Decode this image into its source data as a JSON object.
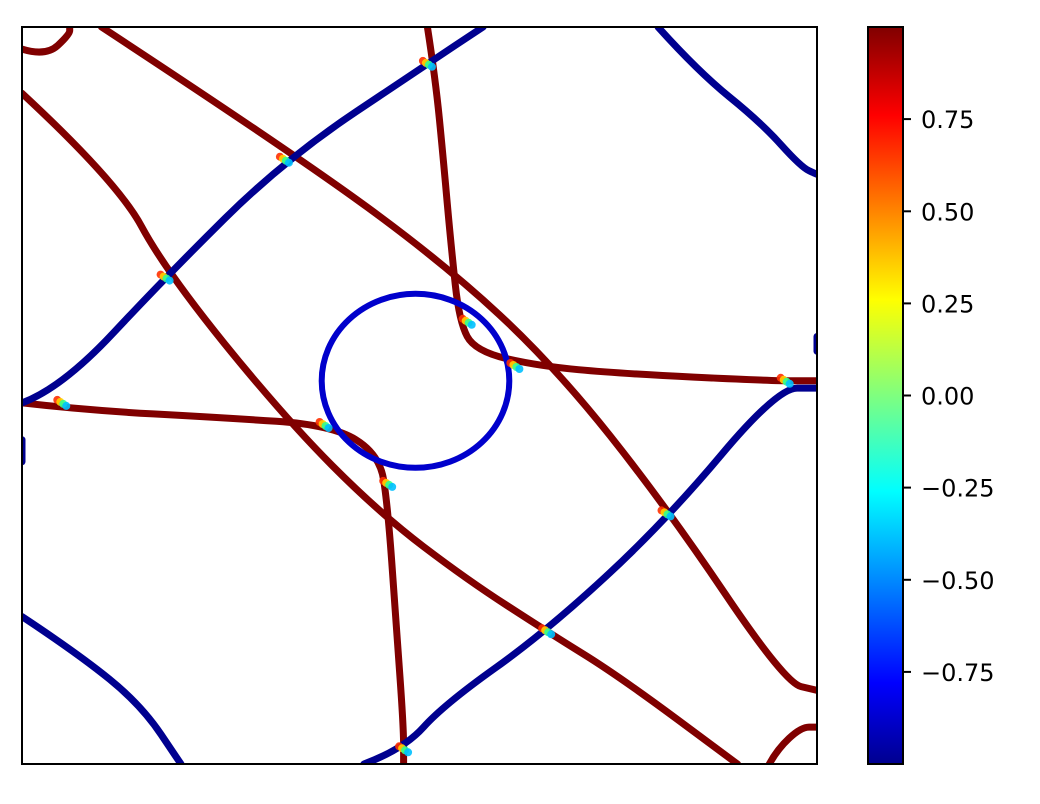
{
  "chart_data": {
    "type": "heatmap",
    "title": "",
    "xlabel": "",
    "ylabel": "",
    "x_ticks_visible": false,
    "y_ticks_visible": false,
    "description": "Contour-style heatmap showing two sets of curved lines: a family of dark-red (value about +1) curves and a family of dark-blue (value about -1) curves, with smooth color transitions at their crossing points.",
    "colormap": "jet",
    "colorbar": {
      "range": [
        -1,
        1
      ],
      "ticks": [
        -0.75,
        -0.5,
        -0.25,
        0.0,
        0.25,
        0.5,
        0.75
      ],
      "tick_labels": [
        "−0.75",
        "−0.50",
        "−0.25",
        "0.00",
        "0.25",
        "0.50",
        "0.75"
      ],
      "orientation": "vertical",
      "position": "right"
    },
    "series": [
      {
        "value": 1,
        "color": "#800000",
        "curves": [
          [
            [
              0.1,
              0.0
            ],
            [
              0.34,
              0.17
            ],
            [
              0.53,
              0.32
            ],
            [
              0.67,
              0.46
            ],
            [
              0.81,
              0.65
            ],
            [
              0.96,
              0.89
            ],
            [
              1.0,
              0.9
            ]
          ],
          [
            [
              0.0,
              0.09
            ],
            [
              0.12,
              0.21
            ],
            [
              0.18,
              0.33
            ],
            [
              0.33,
              0.53
            ],
            [
              0.45,
              0.66
            ],
            [
              0.56,
              0.75
            ],
            [
              0.66,
              0.82
            ],
            [
              0.75,
              0.88
            ],
            [
              0.9,
              1.0
            ]
          ],
          [
            [
              0.0,
              0.51
            ],
            [
              0.08,
              0.52
            ],
            [
              0.25,
              0.53
            ],
            [
              0.39,
              0.54
            ],
            [
              0.45,
              0.58
            ],
            [
              0.46,
              0.65
            ],
            [
              0.47,
              0.8
            ],
            [
              0.48,
              0.95
            ],
            [
              0.48,
              1.0
            ]
          ],
          [
            [
              0.51,
              0.0
            ],
            [
              0.52,
              0.07
            ],
            [
              0.53,
              0.18
            ],
            [
              0.54,
              0.3
            ],
            [
              0.55,
              0.4
            ],
            [
              0.57,
              0.44
            ],
            [
              0.65,
              0.46
            ],
            [
              0.75,
              0.47
            ],
            [
              0.94,
              0.48
            ],
            [
              1.0,
              0.48
            ]
          ],
          [
            [
              0.0,
              0.03
            ],
            [
              0.03,
              0.04
            ],
            [
              0.06,
              0.01
            ],
            [
              0.06,
              0.0
            ]
          ],
          [
            [
              0.94,
              1.0
            ],
            [
              0.95,
              0.98
            ],
            [
              0.98,
              0.95
            ],
            [
              1.0,
              0.95
            ]
          ]
        ]
      },
      {
        "value": -1,
        "color": "#00008f",
        "curves": [
          [
            [
              0.0,
              0.51
            ],
            [
              0.05,
              0.49
            ],
            [
              0.18,
              0.34
            ],
            [
              0.33,
              0.18
            ],
            [
              0.51,
              0.05
            ],
            [
              0.58,
              0.0
            ]
          ],
          [
            [
              0.43,
              1.0
            ],
            [
              0.48,
              0.98
            ],
            [
              0.53,
              0.92
            ],
            [
              0.66,
              0.82
            ],
            [
              0.81,
              0.67
            ],
            [
              0.95,
              0.49
            ],
            [
              1.0,
              0.49
            ]
          ],
          [
            [
              0.8,
              0.0
            ],
            [
              0.85,
              0.06
            ],
            [
              0.93,
              0.13
            ],
            [
              0.98,
              0.19
            ],
            [
              1.0,
              0.2
            ]
          ],
          [
            [
              0.0,
              0.8
            ],
            [
              0.07,
              0.85
            ],
            [
              0.15,
              0.92
            ],
            [
              0.2,
              1.0
            ]
          ],
          [
            [
              0.0,
              0.56
            ],
            [
              0.0,
              0.59
            ]
          ],
          [
            [
              1.0,
              0.42
            ],
            [
              1.0,
              0.44
            ]
          ],
          {
            "type": "ellipse",
            "center": [
              0.495,
              0.48
            ],
            "radius_x": 0.118,
            "radius_y": 0.118
          }
        ]
      }
    ],
    "crossings": [
      [
        0.33,
        0.18
      ],
      [
        0.18,
        0.34
      ],
      [
        0.51,
        0.05
      ],
      [
        0.56,
        0.4
      ],
      [
        0.62,
        0.46
      ],
      [
        0.38,
        0.54
      ],
      [
        0.46,
        0.62
      ],
      [
        0.81,
        0.66
      ],
      [
        0.66,
        0.82
      ],
      [
        0.48,
        0.98
      ],
      [
        0.96,
        0.48
      ],
      [
        0.05,
        0.51
      ]
    ]
  }
}
